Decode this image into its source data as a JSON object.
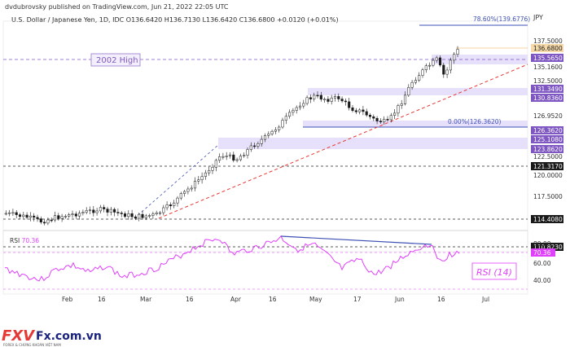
{
  "header": {
    "published": "dvdubrovsky published on TradingView.com, Jun 21, 2022 22:05 UTC",
    "symbol": "U.S. Dollar / Japanese Yen, 1D, IDC",
    "ohlc": "O136.6420 H136.7130 L136.6420 C136.6800 +0.0120 (+0.01%)",
    "currency": "JPY"
  },
  "annotations": {
    "high_2002": "2002 High",
    "fib_786": "78.60%(139.6776)",
    "fib_0": "0.00%(126.3620)",
    "rsi_label": "RSI (14)",
    "rsi_header": "RSI",
    "rsi_header_value": "70.36"
  },
  "price_axis": {
    "ticks": [
      "137.5000",
      "135.1600",
      "132.5000",
      "126.9520",
      "122.5000",
      "120.0000",
      "117.5000"
    ],
    "tags_purple": [
      "135.5650",
      "131.3490",
      "130.8360",
      "126.3620",
      "125.1080",
      "123.8620"
    ],
    "tag_current": "136.6800",
    "tags_dark": [
      "121.3170",
      "114.4080",
      "110.8230"
    ],
    "rsi_ticks": [
      "80.00",
      "60.00",
      "40.00"
    ],
    "rsi_tag": "70.36"
  },
  "time_axis": [
    "Feb",
    "16",
    "Mar",
    "16",
    "Apr",
    "16",
    "May",
    "17",
    "Jun",
    "16",
    "Jul"
  ],
  "watermark": {
    "brand": "FXV",
    "suffix": "Fx.com.vn",
    "tagline": "FOREX & CHỨNG KHOÁN VIỆT NAM"
  },
  "colors": {
    "up_candle": "#ffffff",
    "down_candle": "#1a1a1a",
    "zone_fill": "#e7e0fb",
    "purple": "#7e57c2",
    "trend_red": "#e53935",
    "rsi_line": "#e040fb",
    "divergence": "#3f51b5",
    "current_tag": "#f6d9a8"
  }
}
